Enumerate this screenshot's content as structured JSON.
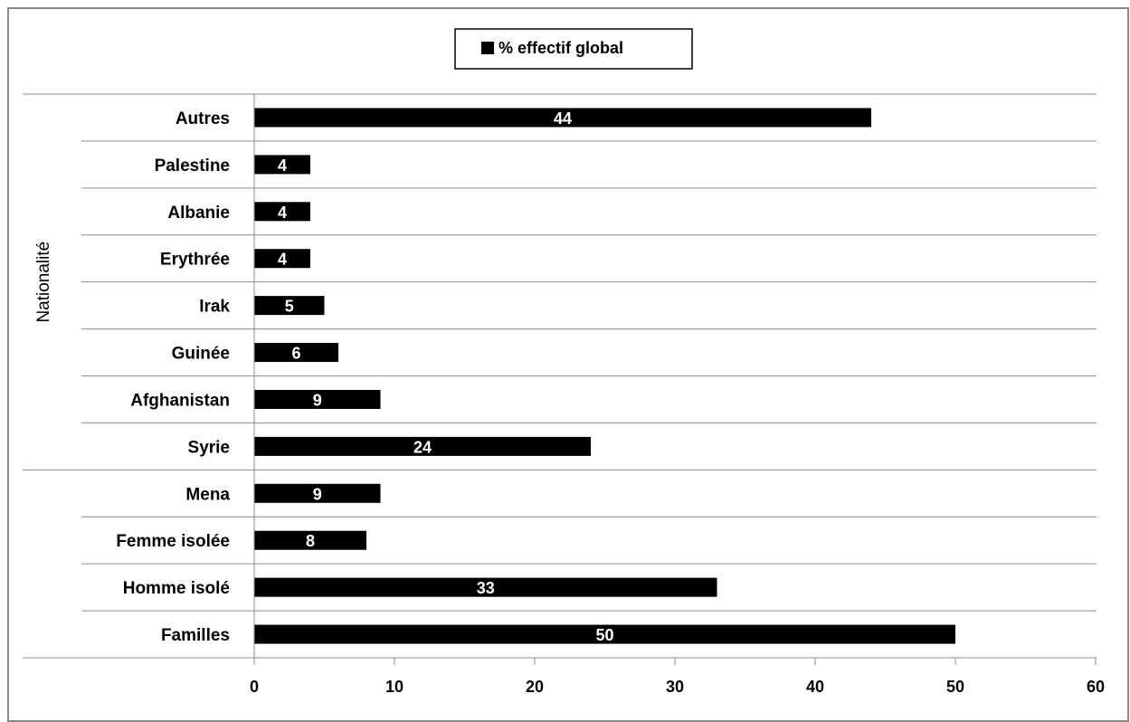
{
  "chart_data": {
    "type": "bar",
    "orientation": "horizontal",
    "categories": [
      "Familles",
      "Homme isolé",
      "Femme isolée",
      "Mena",
      "Syrie",
      "Afghanistan",
      "Guinée",
      "Irak",
      "Erythrée",
      "Albanie",
      "Palestine",
      "Autres"
    ],
    "series": [
      {
        "name": "% effectif global",
        "values": [
          50,
          33,
          8,
          9,
          24,
          9,
          6,
          5,
          4,
          4,
          4,
          44
        ],
        "color": "#000000"
      }
    ],
    "groups": [
      {
        "label": "",
        "from": 0,
        "to": 3
      },
      {
        "label": "Nationalité",
        "from": 4,
        "to": 11
      }
    ],
    "xlim": [
      0,
      60
    ],
    "xticks": [
      0,
      10,
      20,
      30,
      40,
      50,
      60
    ],
    "grid": "horizontal category separators",
    "legend_position": "top-center",
    "title": "",
    "xlabel": "",
    "ylabel": ""
  }
}
